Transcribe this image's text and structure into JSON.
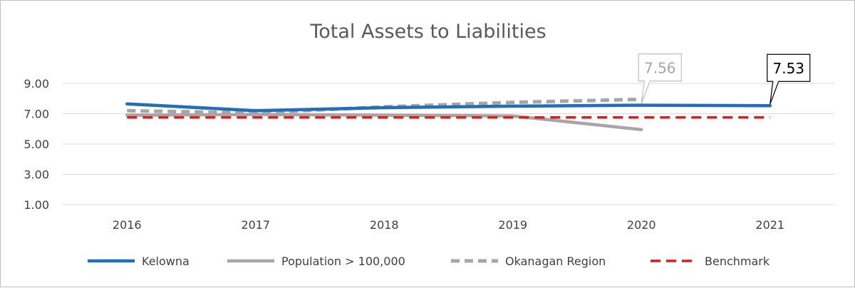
{
  "chart_data": {
    "type": "line",
    "title": "Total Assets to Liabilities",
    "categories": [
      "2016",
      "2017",
      "2018",
      "2019",
      "2020",
      "2021"
    ],
    "ylim": [
      1,
      9
    ],
    "yticks": [
      "9.00",
      "7.00",
      "5.00",
      "3.00",
      "1.00"
    ],
    "ytick_values": [
      9,
      7,
      5,
      3,
      1
    ],
    "grid": true,
    "legend_position": "bottom",
    "series": [
      {
        "name": "Kelowna",
        "values": [
          7.65,
          7.2,
          7.4,
          7.5,
          7.56,
          7.53
        ],
        "color": "#1f6fbd",
        "dash": "solid"
      },
      {
        "name": "Population > 100,000",
        "values": [
          6.9,
          6.95,
          6.9,
          6.85,
          5.95,
          null
        ],
        "color": "#a6a6a6",
        "dash": "solid"
      },
      {
        "name": "Okanagan Region",
        "values": [
          7.2,
          7.05,
          7.45,
          7.75,
          7.95,
          null
        ],
        "color": "#a6a6a6",
        "dash": "dashed"
      },
      {
        "name": "Benchmark",
        "values": [
          6.75,
          6.75,
          6.75,
          6.75,
          6.75,
          6.75
        ],
        "color": "#e21a1a",
        "dash": "dashed"
      }
    ],
    "annotations": [
      {
        "text": "7.56",
        "category": "2020",
        "series": "Kelowna",
        "value": 7.56,
        "color": "#a6a6a6",
        "border": "#bfbfbf"
      },
      {
        "text": "7.53",
        "category": "2021",
        "series": "Kelowna",
        "value": 7.53,
        "color": "#000000",
        "border": "#000000"
      }
    ]
  }
}
